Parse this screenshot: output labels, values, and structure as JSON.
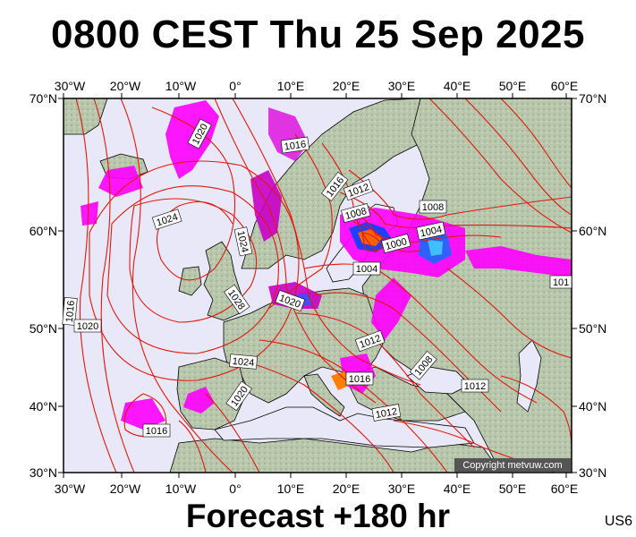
{
  "title": "0800 CEST Thu 25 Sep 2025",
  "footer": "Forecast +180 hr",
  "product_code": "US6",
  "copyright": "Copyright metvuw.com",
  "axes": {
    "top": [
      "30°W",
      "20°W",
      "10°W",
      "0°",
      "10°E",
      "20°E",
      "30°E",
      "40°E",
      "50°E",
      "60°E"
    ],
    "bottom": [
      "30°W",
      "20°W",
      "10°W",
      "0°",
      "10°E",
      "20°E",
      "30°E",
      "40°E",
      "50°E",
      "60°E"
    ],
    "left": [
      "70°N",
      "60°N",
      "50°N",
      "40°N",
      "30°N"
    ],
    "right": [
      "70°N",
      "60°N",
      "50°N",
      "40°N",
      "30°N"
    ]
  },
  "isobar_labels": [
    "1020",
    "1016",
    "1012",
    "1016",
    "1008",
    "1008",
    "1024",
    "1024",
    "1004",
    "1000",
    "1004",
    "1028",
    "1020",
    "1016",
    "1020",
    "1012",
    "1024",
    "1008",
    "1016",
    "1012",
    "1020",
    "1012",
    "1016",
    "101"
  ],
  "colors": {
    "sea": "#e8e8f8",
    "land": "#b9c8ac",
    "isobar": "#e0180f",
    "rain": "#ff00ff",
    "rain_dark": "#c800c8",
    "rain_heavy": "#4060ff",
    "coast": "#000000"
  }
}
